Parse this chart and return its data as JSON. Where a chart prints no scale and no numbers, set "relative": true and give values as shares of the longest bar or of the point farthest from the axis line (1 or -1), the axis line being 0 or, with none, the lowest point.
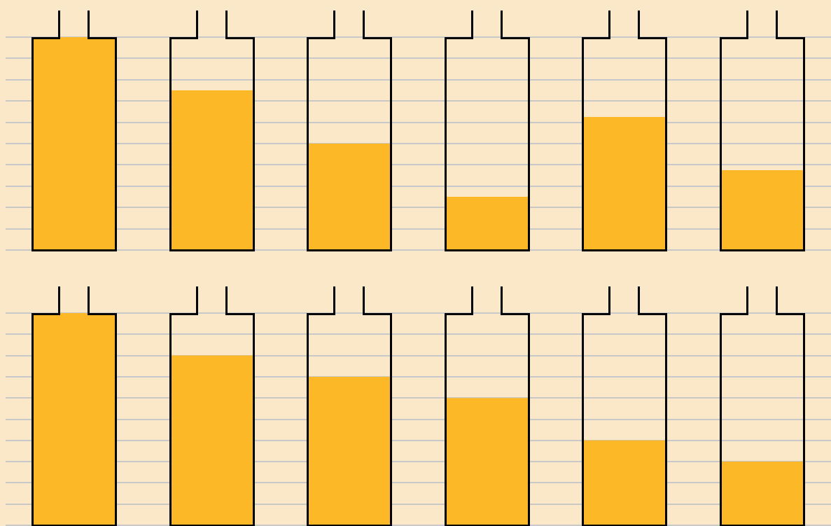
{
  "chart_data": [
    {
      "type": "bar",
      "categories": [
        null,
        null,
        null,
        null,
        null,
        null
      ],
      "values": [
        1,
        0.75,
        0.5,
        0.25,
        0.625,
        0.375
      ],
      "color": "#fdb827",
      "relative": true,
      "grid": "y"
    },
    {
      "type": "bar",
      "categories": [
        null,
        null,
        null,
        null,
        null,
        null
      ],
      "values": [
        1,
        0.8,
        0.7,
        0.6,
        0.4,
        0.3
      ],
      "color": "#fdb827",
      "relative": true,
      "grid": "y"
    }
  ]
}
